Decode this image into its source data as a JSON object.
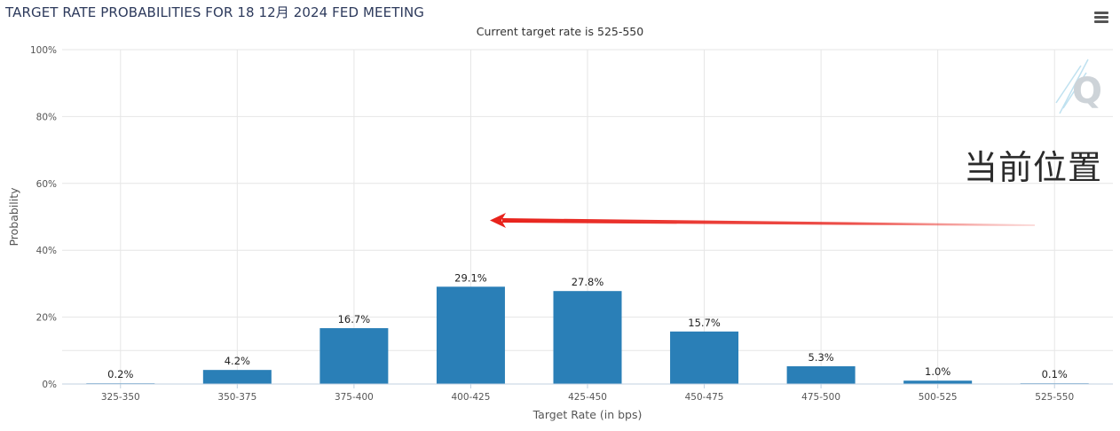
{
  "header": {
    "title": "TARGET RATE PROBABILITIES FOR 18 12月 2024 FED MEETING",
    "subtitle": "Current target rate is 525-550"
  },
  "menu": {
    "icon": "hamburger-menu-icon"
  },
  "annotation": {
    "text": "当前位置",
    "arrow_color": "#e8231c",
    "arrow_direction": "left",
    "points_to_category": "400-425"
  },
  "watermark": {
    "text": "Q"
  },
  "colors": {
    "bar": "#2a7fb7",
    "grid": "#e6e6e6",
    "axis": "#c0d0e0",
    "title": "#2d3a5c"
  },
  "chart_data": {
    "type": "bar",
    "title": "TARGET RATE PROBABILITIES FOR 18 12月 2024 FED MEETING",
    "subtitle": "Current target rate is 525-550",
    "xlabel": "Target Rate (in bps)",
    "ylabel": "Probability",
    "categories": [
      "325-350",
      "350-375",
      "375-400",
      "400-425",
      "425-450",
      "450-475",
      "475-500",
      "500-525",
      "525-550"
    ],
    "values": [
      0.2,
      4.2,
      16.7,
      29.1,
      27.8,
      15.7,
      5.3,
      1.0,
      0.1
    ],
    "data_labels": [
      "0.2%",
      "4.2%",
      "16.7%",
      "29.1%",
      "27.8%",
      "15.7%",
      "5.3%",
      "1.0%",
      "0.1%"
    ],
    "ylim": [
      0,
      100
    ],
    "yticks": [
      0,
      20,
      40,
      60,
      80,
      100
    ],
    "ytick_labels": [
      "0%",
      "20%",
      "40%",
      "60%",
      "80%",
      "100%"
    ],
    "grid": true,
    "legend": "none"
  }
}
